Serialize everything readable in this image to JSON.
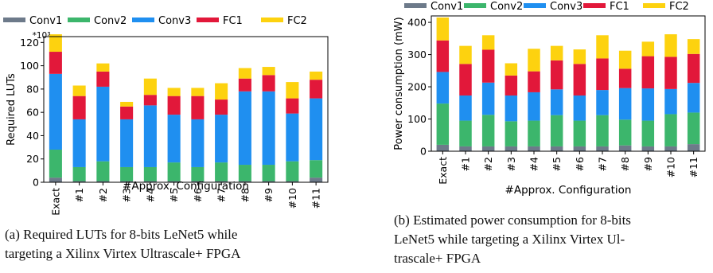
{
  "colors": {
    "Conv1": "#6d7a8a",
    "Conv2": "#3cb66c",
    "Conv3": "#1f8ff0",
    "FC1": "#e2183a",
    "FC2": "#fdd20f"
  },
  "chart_data": [
    {
      "type": "bar",
      "stacked": true,
      "categories": [
        "Exact",
        "#1",
        "#2",
        "#3",
        "#4",
        "#5",
        "#6",
        "#7",
        "#8",
        "#9",
        "#10",
        "#11"
      ],
      "series": [
        {
          "name": "Conv1",
          "values": [
            4,
            1,
            1,
            1,
            1,
            1,
            1,
            1,
            1,
            1,
            1,
            4
          ]
        },
        {
          "name": "Conv2",
          "values": [
            24,
            12,
            17,
            12,
            12,
            16,
            12,
            16,
            14,
            14,
            17,
            15
          ]
        },
        {
          "name": "Conv3",
          "values": [
            65,
            41,
            64,
            41,
            53,
            41,
            41,
            41,
            63,
            63,
            41,
            53
          ]
        },
        {
          "name": "FC1",
          "values": [
            19,
            20,
            13,
            11,
            9,
            16,
            20,
            13,
            11,
            14,
            13,
            16
          ]
        },
        {
          "name": "FC2",
          "values": [
            15,
            9,
            7,
            4,
            14,
            7,
            7,
            14,
            9,
            7,
            14,
            7
          ]
        }
      ],
      "xlabel": "#Approx. Configuration",
      "ylabel": "Required LUTs",
      "y_multiplier": "*10³",
      "ylim": [
        0,
        125
      ],
      "yticks": [
        0,
        20,
        40,
        60,
        80,
        100,
        120
      ],
      "legend_position": "top",
      "grid": false,
      "caption": "(a) Required LUTs for 8-bits LeNet5 while\ntargeting a Xilinx Virtex Ultrascale+ FPGA"
    },
    {
      "type": "bar",
      "stacked": true,
      "categories": [
        "Exact",
        "#1",
        "#2",
        "#3",
        "#4",
        "#5",
        "#6",
        "#7",
        "#8",
        "#9",
        "#10",
        "#11"
      ],
      "series": [
        {
          "name": "Conv1",
          "values": [
            20,
            15,
            15,
            15,
            15,
            15,
            15,
            15,
            18,
            15,
            15,
            22
          ]
        },
        {
          "name": "Conv2",
          "values": [
            128,
            80,
            98,
            78,
            80,
            97,
            80,
            97,
            80,
            80,
            100,
            98
          ]
        },
        {
          "name": "Conv3",
          "values": [
            98,
            78,
            100,
            80,
            88,
            80,
            78,
            78,
            98,
            100,
            78,
            92
          ]
        },
        {
          "name": "FC1",
          "values": [
            98,
            98,
            102,
            62,
            65,
            90,
            98,
            98,
            60,
            100,
            100,
            90
          ]
        },
        {
          "name": "FC2",
          "values": [
            71,
            56,
            45,
            38,
            70,
            45,
            45,
            72,
            56,
            45,
            70,
            46
          ]
        }
      ],
      "xlabel": "#Approx. Configuration",
      "ylabel": "Power consumption (mW)",
      "ylim": [
        0,
        420
      ],
      "yticks": [
        0,
        100,
        200,
        300,
        400
      ],
      "legend_position": "top",
      "grid": false,
      "caption": "(b) Estimated power consumption for 8-bits\nLeNet5 while targeting a Xilinx Virtex Ul-\ntrascale+ FPGA"
    }
  ]
}
